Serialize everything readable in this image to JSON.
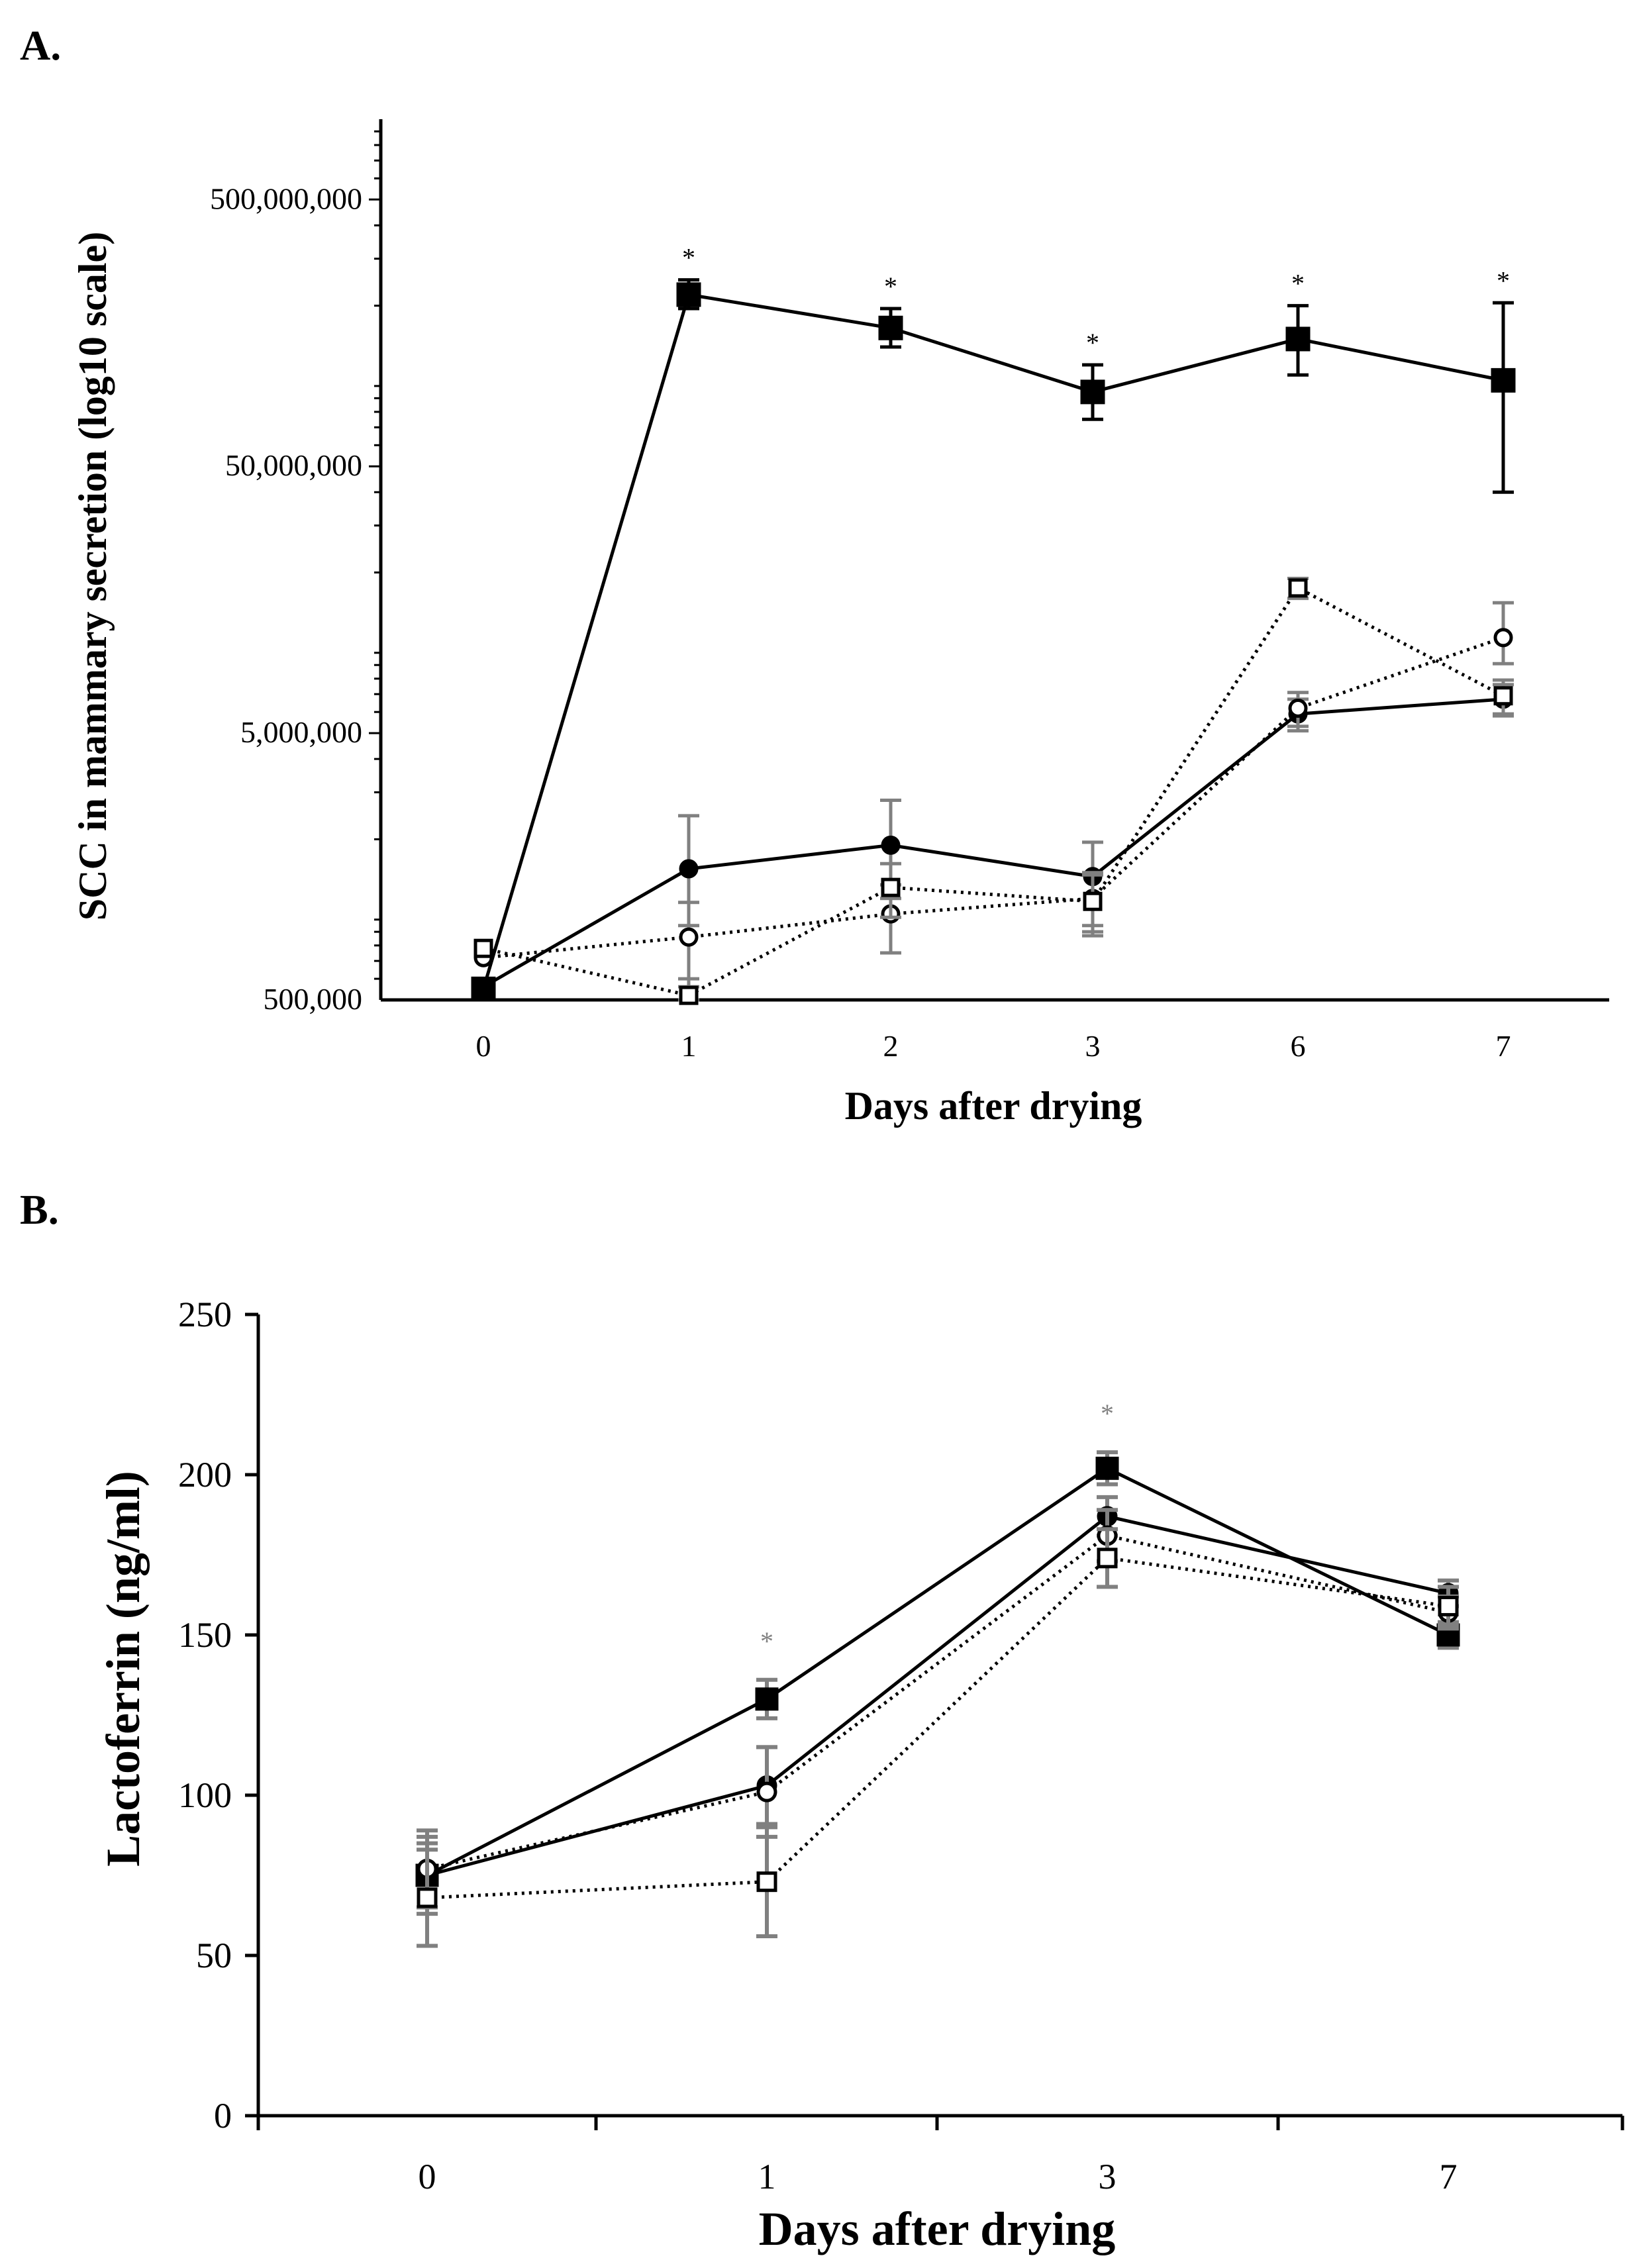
{
  "chart_data": [
    {
      "panel": "A.",
      "type": "line",
      "scale": "log10",
      "xlabel": "Days after drying",
      "ylabel": "SCC in mammary secretion (log10 scale)",
      "categories": [
        "0",
        "1",
        "2",
        "3",
        "6",
        "7"
      ],
      "ylim": [
        500000,
        1000000000
      ],
      "yticks": [
        500000,
        5000000,
        50000000,
        500000000
      ],
      "ytick_labels": [
        "500,000",
        "5,000,000",
        "50,000,000",
        "500,000,000"
      ],
      "significance_marker": "*",
      "significant_categories": [
        "1",
        "2",
        "3",
        "6",
        "7"
      ],
      "series": [
        {
          "marker": "filled-square",
          "line": "solid",
          "values": [
            550000,
            220000000,
            165000000,
            95000000,
            150000000,
            105000000
          ],
          "err_low": [
            0,
            25000000,
            25000000,
            20000000,
            40000000,
            65000000
          ],
          "err_high": [
            0,
            30000000,
            30000000,
            25000000,
            50000000,
            100000000
          ]
        },
        {
          "marker": "filled-circle",
          "line": "solid",
          "values": [
            560000,
            1550000,
            1900000,
            1450000,
            5900000,
            6700000
          ],
          "err_low": [
            0,
            600000,
            700000,
            500000,
            800000,
            900000
          ],
          "err_high": [
            0,
            900000,
            900000,
            500000,
            800000,
            900000
          ]
        },
        {
          "marker": "open-circle",
          "line": "dotted",
          "values": [
            720000,
            860000,
            1050000,
            1200000,
            6200000,
            11400000
          ],
          "err_low": [
            0,
            300000,
            300000,
            300000,
            900000,
            2300000
          ],
          "err_high": [
            0,
            300000,
            300000,
            300000,
            900000,
            4000000
          ]
        },
        {
          "marker": "open-square",
          "line": "dotted",
          "values": [
            780000,
            520000,
            1320000,
            1170000,
            17500000,
            6900000
          ],
          "err_low": [
            0,
            80000,
            300000,
            300000,
            1500000,
            1000000
          ],
          "err_high": [
            0,
            80000,
            300000,
            300000,
            1500000,
            1000000
          ]
        }
      ]
    },
    {
      "panel": "B.",
      "type": "line",
      "xlabel": "Days after drying",
      "ylabel": "Lactoferrin (ng/ml)",
      "categories": [
        "0",
        "1",
        "3",
        "7"
      ],
      "ylim": [
        0,
        250
      ],
      "yticks": [
        0,
        50,
        100,
        150,
        200,
        250
      ],
      "ytick_labels": [
        "0",
        "50",
        "100",
        "150",
        "200",
        "250"
      ],
      "significance_marker": "*",
      "significant_categories": [
        "1",
        "3"
      ],
      "series": [
        {
          "marker": "filled-square",
          "line": "solid",
          "values": [
            75,
            130,
            202,
            150
          ],
          "err": [
            10,
            6,
            5,
            4
          ]
        },
        {
          "marker": "filled-circle",
          "line": "solid",
          "values": [
            75,
            103,
            187,
            163
          ],
          "err": [
            12,
            12,
            6,
            4
          ]
        },
        {
          "marker": "open-circle",
          "line": "dotted",
          "values": [
            77,
            101,
            181,
            157
          ],
          "err": [
            12,
            14,
            8,
            5
          ]
        },
        {
          "marker": "open-square",
          "line": "dotted",
          "values": [
            68,
            73,
            174,
            159
          ],
          "err": [
            15,
            17,
            9,
            6
          ]
        }
      ]
    }
  ]
}
